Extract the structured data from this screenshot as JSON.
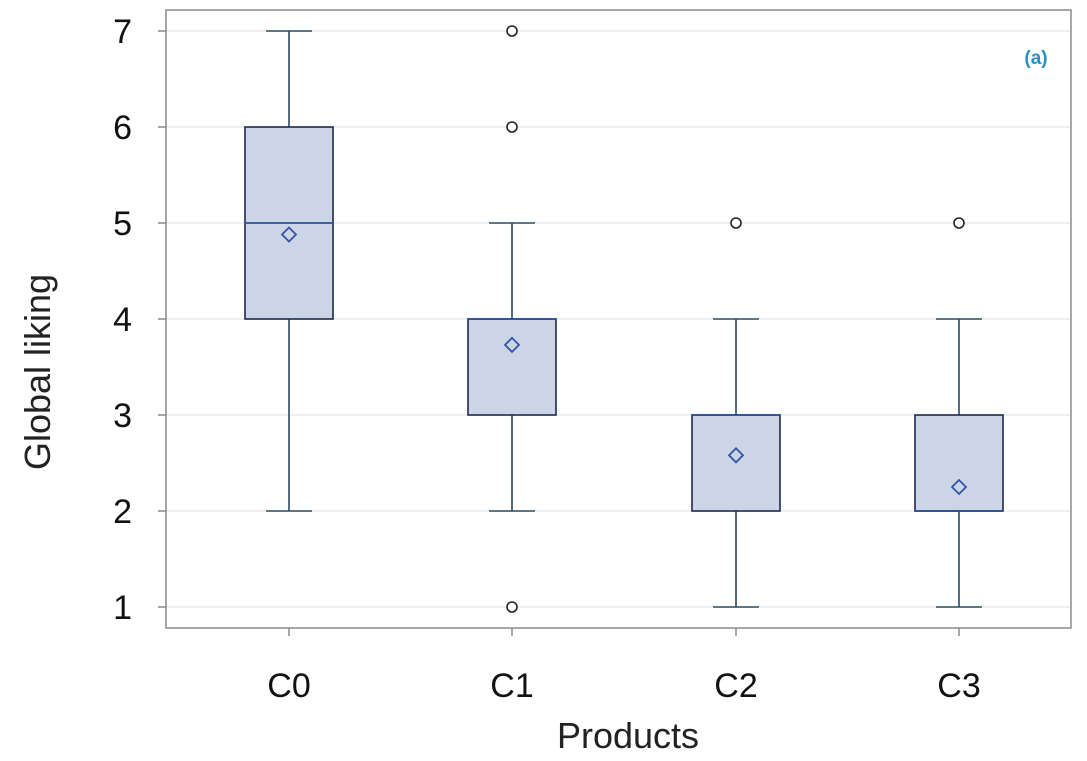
{
  "chart_data": {
    "type": "box",
    "title": "",
    "panel_label": "(a)",
    "xlabel": "Products",
    "ylabel": "Global liking",
    "ylim": [
      0.75,
      7.2
    ],
    "yticks": [
      1,
      2,
      3,
      4,
      5,
      6,
      7
    ],
    "categories": [
      "C0",
      "C1",
      "C2",
      "C3"
    ],
    "boxes": [
      {
        "category": "C0",
        "whisker_low": 2,
        "q1": 4,
        "median": 5,
        "q3": 6,
        "whisker_high": 7,
        "mean": 4.88,
        "outliers": []
      },
      {
        "category": "C1",
        "whisker_low": 2,
        "q1": 3,
        "median": 4,
        "q3": 4,
        "whisker_high": 5,
        "mean": 3.73,
        "outliers": [
          1,
          6,
          7
        ]
      },
      {
        "category": "C2",
        "whisker_low": 1,
        "q1": 2,
        "median": 3,
        "q3": 3,
        "whisker_high": 4,
        "mean": 2.58,
        "outliers": [
          5
        ]
      },
      {
        "category": "C3",
        "whisker_low": 1,
        "q1": 2,
        "median": 2,
        "q3": 3,
        "whisker_high": 4,
        "mean": 2.25,
        "outliers": [
          5
        ]
      }
    ],
    "grid": "horizontal",
    "legend": "none",
    "colors": {
      "box_fill": "#cbd5e6",
      "box_edge": "#1e2a4a",
      "median": "#2b4f9a",
      "whisker": "#2e4a5e",
      "mean_marker": "#3553a8",
      "outlier": "#222222",
      "grid": "#e3e3e3",
      "frame": "#8a8a8a",
      "panel_label": "#2a8fc7"
    }
  }
}
